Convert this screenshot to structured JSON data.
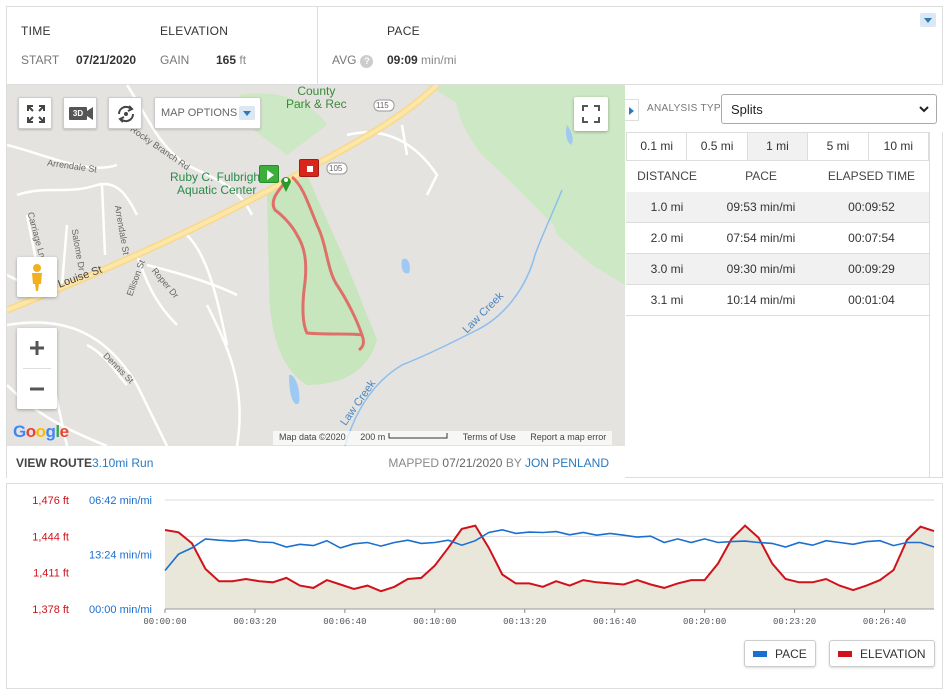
{
  "stats": {
    "time_label": "TIME",
    "elevation_label": "ELEVATION",
    "pace_label": "PACE",
    "start_label": "START",
    "start_value": "07/21/2020",
    "gain_label": "GAIN",
    "gain_value": "165",
    "gain_unit": "ft",
    "avg_label": "AVG",
    "avg_help": "?",
    "avg_value": "09:09",
    "avg_unit": "min/mi"
  },
  "map": {
    "map_options_label": "MAP OPTIONS",
    "btn_3d": "3D",
    "labels": {
      "park": "County\nPark & Rec",
      "route115": "115",
      "route105": "105",
      "aquatic": "Ruby C. Fulbright\nAquatic Center",
      "arrendale1": "Arrendale St",
      "arrendale2": "Arrendale St",
      "rocky": "Rocky Branch Rd",
      "louise": "E Louise St",
      "ellison": "Ellison St",
      "roper": "Roper Dr",
      "salome": "Salome Dr",
      "carriage": "Carriage Ln",
      "dennis": "Dennis St",
      "lawcreek1": "Law Creek",
      "lawcreek2": "Law Creek"
    },
    "attribution": {
      "mapdata": "Map data ©2020",
      "scale": "200 m",
      "terms": "Terms of Use",
      "report": "Report a map error"
    },
    "google": "Google"
  },
  "route": {
    "view_label": "VIEW ROUTE",
    "route_name": "3.10mi Run",
    "mapped_label": "MAPPED",
    "mapped_date": "07/21/2020",
    "by_label": "BY",
    "author": "JON PENLAND"
  },
  "analysis": {
    "type_label": "ANALYSIS TYPE:",
    "selected": "Splits",
    "intervals": [
      "0.1 mi",
      "0.5 mi",
      "1 mi",
      "5 mi",
      "10 mi"
    ],
    "active_interval": "1 mi",
    "headers": [
      "DISTANCE",
      "PACE",
      "ELAPSED TIME"
    ],
    "rows": [
      {
        "distance": "1.0 mi",
        "pace": "09:53 min/mi",
        "elapsed": "00:09:52"
      },
      {
        "distance": "2.0 mi",
        "pace": "07:54 min/mi",
        "elapsed": "00:07:54"
      },
      {
        "distance": "3.0 mi",
        "pace": "09:30 min/mi",
        "elapsed": "00:09:29"
      },
      {
        "distance": "3.1 mi",
        "pace": "10:14 min/mi",
        "elapsed": "00:01:04"
      }
    ]
  },
  "chart_data": {
    "type": "line",
    "x_ticks": [
      "00:00:00",
      "00:03:20",
      "00:06:40",
      "00:10:00",
      "00:13:20",
      "00:16:40",
      "00:20:00",
      "00:23:20",
      "00:26:40"
    ],
    "elevation_ticks": [
      "1,476 ft",
      "1,444 ft",
      "1,411 ft",
      "1,378 ft"
    ],
    "pace_ticks": [
      "06:42 min/mi",
      "13:24 min/mi",
      "00:00 min/mi"
    ],
    "xlim_seconds": [
      0,
      1710
    ],
    "elevation_ylim": [
      1378,
      1476
    ],
    "pace_ylim_seconds": [
      0,
      1206
    ],
    "colors": {
      "pace": "#1a6fd0",
      "elevation": "#d0121b",
      "fill": "#e9e7da"
    },
    "series": [
      {
        "name": "ELEVATION",
        "axis": "left",
        "x": [
          0,
          30,
          60,
          90,
          120,
          150,
          180,
          210,
          240,
          270,
          300,
          330,
          360,
          390,
          420,
          450,
          480,
          510,
          540,
          570,
          600,
          630,
          660,
          690,
          720,
          750,
          780,
          810,
          840,
          870,
          900,
          930,
          960,
          990,
          1020,
          1050,
          1080,
          1110,
          1140,
          1170,
          1200,
          1230,
          1260,
          1290,
          1320,
          1350,
          1380,
          1410,
          1440,
          1470,
          1500,
          1530,
          1560,
          1590,
          1620,
          1650,
          1680,
          1710
        ],
        "values": [
          1449,
          1447,
          1437,
          1414,
          1403,
          1403,
          1405,
          1403,
          1402,
          1406,
          1399,
          1397,
          1404,
          1400,
          1396,
          1399,
          1394,
          1398,
          1405,
          1406,
          1417,
          1433,
          1450,
          1453,
          1433,
          1409,
          1401,
          1401,
          1398,
          1403,
          1399,
          1404,
          1402,
          1401,
          1400,
          1404,
          1400,
          1397,
          1401,
          1404,
          1404,
          1419,
          1441,
          1453,
          1442,
          1419,
          1405,
          1402,
          1402,
          1405,
          1399,
          1395,
          1399,
          1404,
          1413,
          1440,
          1452,
          1448
        ]
      },
      {
        "name": "PACE",
        "axis": "right",
        "x": [
          0,
          30,
          60,
          90,
          120,
          150,
          180,
          210,
          240,
          270,
          300,
          330,
          360,
          390,
          420,
          450,
          480,
          510,
          540,
          570,
          600,
          630,
          660,
          690,
          720,
          750,
          780,
          810,
          840,
          870,
          900,
          930,
          960,
          990,
          1020,
          1050,
          1080,
          1110,
          1140,
          1170,
          1200,
          1230,
          1260,
          1290,
          1320,
          1350,
          1380,
          1410,
          1440,
          1470,
          1500,
          1530,
          1560,
          1590,
          1620,
          1650,
          1680,
          1710
        ],
        "values": [
          780,
          600,
          530,
          430,
          445,
          455,
          440,
          465,
          470,
          520,
          490,
          505,
          450,
          530,
          485,
          470,
          510,
          470,
          445,
          480,
          470,
          445,
          500,
          450,
          360,
          330,
          370,
          355,
          360,
          350,
          385,
          360,
          390,
          370,
          390,
          410,
          400,
          470,
          430,
          470,
          430,
          470,
          460,
          455,
          470,
          480,
          520,
          470,
          500,
          450,
          470,
          490,
          460,
          450,
          505,
          470,
          470,
          520
        ]
      }
    ],
    "legend": [
      "PACE",
      "ELEVATION"
    ],
    "legend_placement": "bottom-right"
  }
}
